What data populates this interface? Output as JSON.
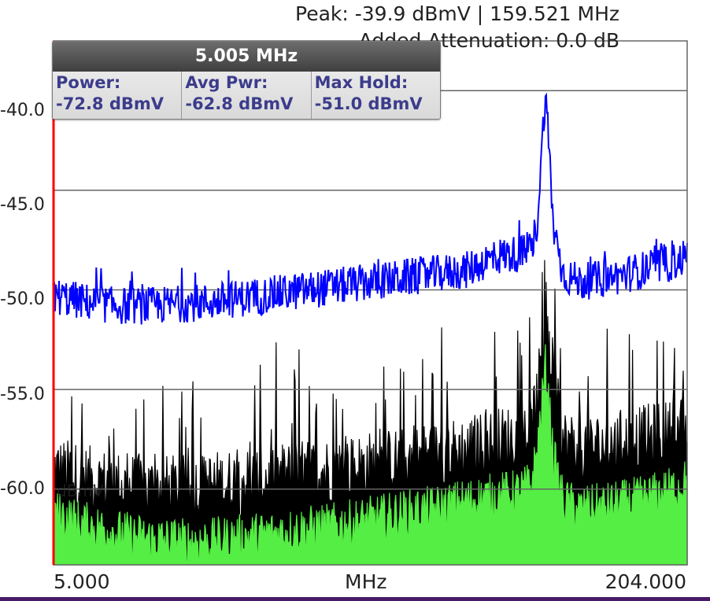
{
  "header": {
    "peak_text": "Peak: -39.9 dBmV | 159.521 MHz",
    "attenuation_text": "Added Attenuation: 0.0 dB"
  },
  "marker": {
    "frequency": "5.005 MHz",
    "power_label": "Power:",
    "power_value": "-72.8 dBmV",
    "avg_label": "Avg Pwr:",
    "avg_value": "-62.8 dBmV",
    "max_label": "Max Hold:",
    "max_value": "-51.0 dBmV"
  },
  "colors": {
    "max_hold_trace": "#0000ff",
    "live_trace": "#000000",
    "average_trace": "#55ee44",
    "marker_line": "#ff0000",
    "grid": "#666666",
    "bottom_bar": "#4a1a66"
  },
  "chart_data": {
    "type": "area",
    "x_unit_label": "MHz",
    "y_unit_label": "dBmV",
    "xlim": [
      5.0,
      204.0
    ],
    "ylim": [
      -63.8,
      -37.5
    ],
    "x_tick_labels": [
      "5.000",
      "MHz",
      "204.000"
    ],
    "y_ticks": [
      -40.0,
      -45.0,
      -50.0,
      -55.0,
      -60.0
    ],
    "y_tick_labels": [
      "-40.0",
      "-45.0",
      "-50.0",
      "-55.0",
      "-60.0"
    ],
    "grid": true,
    "marker_x": 5.005,
    "series": [
      {
        "label": "max hold",
        "color": "#0000ff",
        "x": [
          5,
          15,
          25,
          35,
          45,
          55,
          65,
          75,
          85,
          95,
          105,
          115,
          125,
          135,
          140,
          145,
          150,
          155,
          157,
          159.521,
          162,
          165,
          170,
          180,
          190,
          200,
          204
        ],
        "y": [
          -50.3,
          -50.6,
          -50.8,
          -50.8,
          -50.7,
          -50.6,
          -50.4,
          -50.2,
          -50.0,
          -49.8,
          -49.6,
          -49.4,
          -49.2,
          -49.0,
          -48.6,
          -48.3,
          -48.2,
          -48.1,
          -46.5,
          -39.9,
          -46.8,
          -49.2,
          -49.6,
          -49.4,
          -49.0,
          -48.6,
          -48.3
        ]
      },
      {
        "label": "average",
        "color": "#55ee44",
        "x": [
          5,
          15,
          25,
          35,
          45,
          55,
          65,
          75,
          85,
          95,
          105,
          115,
          125,
          135,
          145,
          150,
          155,
          157,
          159.521,
          162,
          165,
          170,
          180,
          190,
          200,
          204
        ],
        "y": [
          -61.2,
          -61.8,
          -62.2,
          -62.5,
          -62.6,
          -62.6,
          -62.4,
          -62.2,
          -62.0,
          -61.8,
          -61.5,
          -61.2,
          -61.0,
          -60.6,
          -60.3,
          -60.2,
          -59.8,
          -58.0,
          -53.8,
          -58.4,
          -60.6,
          -61.0,
          -60.8,
          -60.5,
          -60.0,
          -59.6
        ]
      },
      {
        "label": "live",
        "color": "#000000",
        "x": [
          5,
          15,
          25,
          35,
          45,
          55,
          65,
          75,
          85,
          95,
          105,
          115,
          125,
          135,
          145,
          150,
          155,
          159.521,
          165,
          170,
          180,
          190,
          200,
          204
        ],
        "y": [
          -59.0,
          -59.5,
          -59.8,
          -60.0,
          -60.0,
          -59.8,
          -59.6,
          -59.4,
          -59.2,
          -59.0,
          -58.8,
          -58.6,
          -58.3,
          -58.0,
          -57.6,
          -57.4,
          -57.2,
          -52.6,
          -57.6,
          -58.0,
          -57.8,
          -57.5,
          -57.2,
          -57.0
        ]
      }
    ]
  }
}
